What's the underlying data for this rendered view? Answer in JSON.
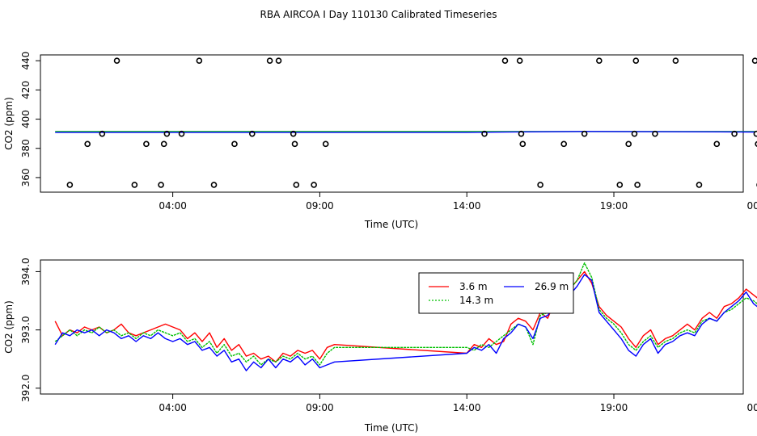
{
  "figure_title": "RBA AIRCOA I  Day 110130  Calibrated Timeseries",
  "chart_data": [
    {
      "type": "scatter",
      "title": "",
      "xlabel": "Time (UTC)",
      "ylabel": "CO2 (ppm)",
      "xlim": [
        -0.5,
        23.4
      ],
      "ylim": [
        350,
        444
      ],
      "xticks": [
        {
          "v": 4,
          "label": "04:00"
        },
        {
          "v": 9,
          "label": "09:00"
        },
        {
          "v": 14,
          "label": "14:00"
        },
        {
          "v": 19,
          "label": "19:00"
        },
        {
          "v": 24,
          "label": "00:00"
        }
      ],
      "yticks": [
        360,
        380,
        400,
        420,
        440
      ],
      "grid": false,
      "series": [
        {
          "color": "#00c000",
          "x": [
            0.0,
            23.8
          ],
          "y": [
            391.5,
            391.5
          ]
        },
        {
          "color": "#0000ff",
          "x": [
            0.0,
            14.0,
            18.0,
            23.8
          ],
          "y": [
            391.0,
            391.0,
            391.6,
            391.2
          ]
        }
      ],
      "points": {
        "x": [
          0.5,
          1.1,
          1.6,
          2.1,
          2.7,
          3.1,
          3.6,
          3.7,
          3.8,
          4.3,
          4.9,
          5.4,
          6.1,
          6.7,
          7.3,
          7.6,
          8.1,
          8.15,
          8.2,
          8.8,
          9.2,
          14.6,
          15.3,
          15.8,
          15.85,
          15.9,
          16.5,
          17.3,
          18.0,
          18.5,
          19.2,
          19.5,
          19.7,
          19.75,
          19.8,
          20.4,
          21.1,
          21.9,
          22.5,
          23.1,
          23.8,
          23.85,
          23.9,
          23.95
        ],
        "y": [
          355,
          383,
          390,
          440,
          355,
          383,
          355,
          383,
          390,
          390,
          440,
          355,
          383,
          390,
          440,
          440,
          390,
          383,
          355,
          355,
          383,
          390,
          440,
          440,
          390,
          383,
          355,
          383,
          390,
          440,
          355,
          383,
          390,
          440,
          355,
          390,
          440,
          355,
          383,
          390,
          440,
          390,
          383,
          355
        ]
      }
    },
    {
      "type": "line",
      "title": "",
      "xlabel": "Time (UTC)",
      "ylabel": "CO2 (ppm)",
      "xlim": [
        -0.5,
        23.4
      ],
      "ylim": [
        391.9,
        394.2
      ],
      "xticks": [
        {
          "v": 4,
          "label": "04:00"
        },
        {
          "v": 9,
          "label": "09:00"
        },
        {
          "v": 14,
          "label": "14:00"
        },
        {
          "v": 19,
          "label": "19:00"
        },
        {
          "v": 24,
          "label": "00:00"
        }
      ],
      "yticks": [
        {
          "v": 392.0,
          "label": "392.0"
        },
        {
          "v": 393.0,
          "label": "393.0"
        },
        {
          "v": 394.0,
          "label": "394.0"
        }
      ],
      "grid": false,
      "legend": {
        "position": "top-center",
        "box": true
      },
      "series": [
        {
          "name": "3.6 m",
          "color": "#ff0000",
          "x": [
            0.0,
            0.25,
            0.5,
            0.75,
            1.0,
            1.25,
            1.5,
            1.75,
            2.0,
            2.25,
            2.5,
            2.75,
            3.0,
            3.25,
            3.5,
            3.75,
            4.0,
            4.25,
            4.5,
            4.75,
            5.0,
            5.25,
            5.5,
            5.75,
            6.0,
            6.25,
            6.5,
            6.75,
            7.0,
            7.25,
            7.5,
            7.75,
            8.0,
            8.25,
            8.5,
            8.75,
            9.0,
            9.25,
            9.5,
            14.0,
            14.25,
            14.5,
            14.75,
            15.0,
            15.25,
            15.5,
            15.75,
            16.0,
            16.25,
            16.5,
            16.75,
            17.0,
            17.25,
            17.5,
            17.75,
            18.0,
            18.25,
            18.5,
            18.75,
            19.0,
            19.25,
            19.5,
            19.75,
            20.0,
            20.25,
            20.5,
            20.75,
            21.0,
            21.25,
            21.5,
            21.75,
            22.0,
            22.25,
            22.5,
            22.75,
            23.0,
            23.25,
            23.5,
            23.75,
            24.0,
            24.2
          ],
          "y": [
            393.15,
            392.9,
            393.0,
            392.95,
            393.05,
            393.0,
            393.05,
            392.95,
            393.0,
            393.1,
            392.95,
            392.9,
            392.95,
            393.0,
            393.05,
            393.1,
            393.05,
            393.0,
            392.85,
            392.95,
            392.8,
            392.95,
            392.7,
            392.85,
            392.65,
            392.75,
            392.55,
            392.6,
            392.5,
            392.55,
            392.45,
            392.6,
            392.55,
            392.65,
            392.6,
            392.65,
            392.5,
            392.7,
            392.75,
            392.6,
            392.75,
            392.7,
            392.85,
            392.75,
            392.8,
            393.1,
            393.2,
            393.15,
            393.0,
            393.3,
            393.2,
            393.5,
            393.4,
            393.7,
            393.85,
            394.0,
            393.8,
            393.4,
            393.25,
            393.15,
            393.05,
            392.85,
            392.7,
            392.9,
            393.0,
            392.75,
            392.85,
            392.9,
            393.0,
            393.1,
            393.0,
            393.2,
            393.3,
            393.2,
            393.4,
            393.45,
            393.55,
            393.7,
            393.6,
            393.5,
            393.3
          ]
        },
        {
          "name": "14.3 m",
          "color": "#00c000",
          "x": [
            0.0,
            0.25,
            0.5,
            0.75,
            1.0,
            1.25,
            1.5,
            1.75,
            2.0,
            2.25,
            2.5,
            2.75,
            3.0,
            3.25,
            3.5,
            3.75,
            4.0,
            4.25,
            4.5,
            4.75,
            5.0,
            5.25,
            5.5,
            5.75,
            6.0,
            6.25,
            6.5,
            6.75,
            7.0,
            7.25,
            7.5,
            7.75,
            8.0,
            8.25,
            8.5,
            8.75,
            9.0,
            9.25,
            9.5,
            14.0,
            14.25,
            14.5,
            14.75,
            15.0,
            15.25,
            15.5,
            15.75,
            16.0,
            16.25,
            16.5,
            16.75,
            17.0,
            17.25,
            17.5,
            17.75,
            18.0,
            18.25,
            18.5,
            18.75,
            19.0,
            19.25,
            19.5,
            19.75,
            20.0,
            20.25,
            20.5,
            20.75,
            21.0,
            21.25,
            21.5,
            21.75,
            22.0,
            22.25,
            22.5,
            22.75,
            23.0,
            23.25,
            23.5,
            23.75,
            24.0,
            24.2
          ],
          "y": [
            392.8,
            392.9,
            393.0,
            392.9,
            393.0,
            392.95,
            393.05,
            392.95,
            393.0,
            392.9,
            392.95,
            392.85,
            392.95,
            392.9,
            393.0,
            392.95,
            392.9,
            392.95,
            392.8,
            392.85,
            392.7,
            392.8,
            392.6,
            392.75,
            392.55,
            392.6,
            392.45,
            392.55,
            392.4,
            392.5,
            392.45,
            392.55,
            392.5,
            392.6,
            392.5,
            392.55,
            392.4,
            392.6,
            392.7,
            392.7,
            392.65,
            392.75,
            392.7,
            392.8,
            392.9,
            393.0,
            393.1,
            393.05,
            392.75,
            393.25,
            393.3,
            393.45,
            393.5,
            393.7,
            393.85,
            394.15,
            393.9,
            393.35,
            393.2,
            393.1,
            392.95,
            392.75,
            392.65,
            392.8,
            392.9,
            392.7,
            392.8,
            392.85,
            392.95,
            393.0,
            392.95,
            393.15,
            393.2,
            393.15,
            393.3,
            393.35,
            393.45,
            393.55,
            393.5,
            393.4,
            393.2
          ]
        },
        {
          "name": "26.9 m",
          "color": "#0000ff",
          "x": [
            0.0,
            0.25,
            0.5,
            0.75,
            1.0,
            1.25,
            1.5,
            1.75,
            2.0,
            2.25,
            2.5,
            2.75,
            3.0,
            3.25,
            3.5,
            3.75,
            4.0,
            4.25,
            4.5,
            4.75,
            5.0,
            5.25,
            5.5,
            5.75,
            6.0,
            6.25,
            6.5,
            6.75,
            7.0,
            7.25,
            7.5,
            7.75,
            8.0,
            8.25,
            8.5,
            8.75,
            9.0,
            9.25,
            9.5,
            14.0,
            14.25,
            14.5,
            14.75,
            15.0,
            15.25,
            15.5,
            15.75,
            16.0,
            16.25,
            16.5,
            16.75,
            17.0,
            17.25,
            17.5,
            17.75,
            18.0,
            18.25,
            18.5,
            18.75,
            19.0,
            19.25,
            19.5,
            19.75,
            20.0,
            20.25,
            20.5,
            20.75,
            21.0,
            21.25,
            21.5,
            21.75,
            22.0,
            22.25,
            22.5,
            22.75,
            23.0,
            23.25,
            23.5,
            23.75,
            24.0,
            24.2
          ],
          "y": [
            392.75,
            392.95,
            392.9,
            393.0,
            392.95,
            393.0,
            392.9,
            393.0,
            392.95,
            392.85,
            392.9,
            392.8,
            392.9,
            392.85,
            392.95,
            392.85,
            392.8,
            392.85,
            392.75,
            392.8,
            392.65,
            392.7,
            392.55,
            392.65,
            392.45,
            392.5,
            392.3,
            392.45,
            392.35,
            392.5,
            392.35,
            392.5,
            392.45,
            392.55,
            392.4,
            392.5,
            392.35,
            392.4,
            392.45,
            392.6,
            392.7,
            392.65,
            392.75,
            392.6,
            392.85,
            392.95,
            393.1,
            393.05,
            392.85,
            393.2,
            393.25,
            393.4,
            393.45,
            393.6,
            393.75,
            393.95,
            393.85,
            393.3,
            393.15,
            393.0,
            392.85,
            392.65,
            392.55,
            392.75,
            392.85,
            392.6,
            392.75,
            392.8,
            392.9,
            392.95,
            392.9,
            393.1,
            393.2,
            393.15,
            393.3,
            393.4,
            393.5,
            393.65,
            393.45,
            393.35,
            393.25
          ]
        }
      ]
    }
  ]
}
